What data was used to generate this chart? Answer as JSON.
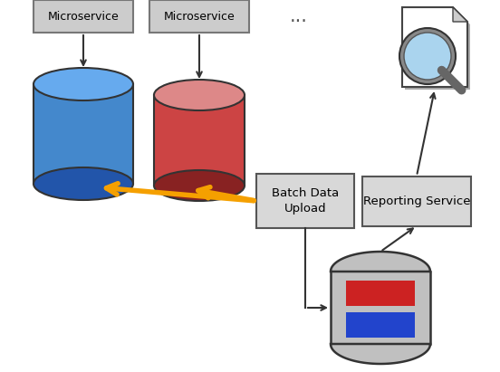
{
  "bg_color": "#ffffff",
  "microservice1_label": "Microservice",
  "microservice2_label": "Microservice",
  "dots_label": "...",
  "batch_label": "Batch Data\nUpload",
  "reporting_label": "Reporting Service",
  "blue_color": "#4488cc",
  "blue_dark": "#2255aa",
  "blue_light": "#66aaee",
  "red_color": "#cc4444",
  "red_dark": "#882222",
  "red_light": "#dd8888",
  "orange_color": "#f5a000",
  "gray_box_bg": "#d8d8d8",
  "gray_box_edge": "#555555",
  "ms_box_bg": "#cccccc",
  "ms_box_edge": "#777777",
  "shared_db_color": "#c0c0c0",
  "shared_db_edge": "#333333",
  "arrow_color": "#333333",
  "red_rect_color": "#cc2222",
  "blue_rect_color": "#2244cc"
}
